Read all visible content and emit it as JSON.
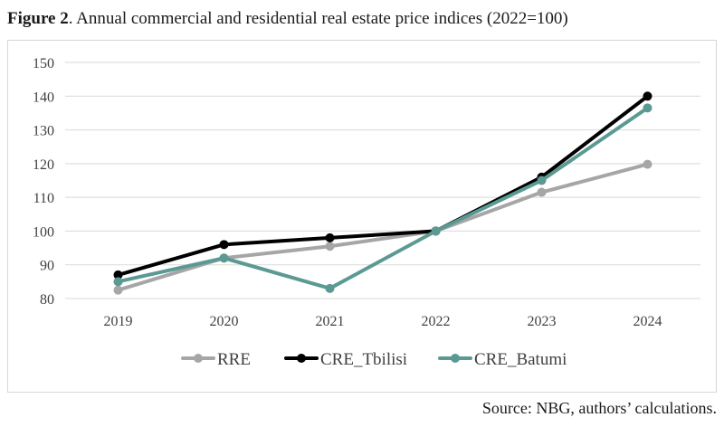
{
  "figure": {
    "label": "Figure 2",
    "title": ". Annual commercial and residential real estate price indices (2022=100)"
  },
  "source_note": "Source: NBG, authors’ calculations.",
  "chart_data": {
    "type": "line",
    "title": "Annual commercial and residential real estate price indices (2022=100)",
    "categories": [
      "2019",
      "2020",
      "2021",
      "2022",
      "2023",
      "2024"
    ],
    "ylim": [
      80,
      150
    ],
    "yticks": [
      80,
      90,
      100,
      110,
      120,
      130,
      140,
      150
    ],
    "grid": true,
    "legend_position": "bottom",
    "series": [
      {
        "name": "RRE",
        "color": "#a6a6a6",
        "values": [
          82.5,
          92,
          95.5,
          100,
          111.5,
          119.8
        ]
      },
      {
        "name": "CRE_Tbilisi",
        "color": "#000000",
        "values": [
          87,
          96,
          98,
          100,
          116,
          140
        ]
      },
      {
        "name": "CRE_Batumi",
        "color": "#5b9a93",
        "values": [
          85,
          92,
          83,
          100,
          115,
          136.5
        ]
      }
    ]
  }
}
